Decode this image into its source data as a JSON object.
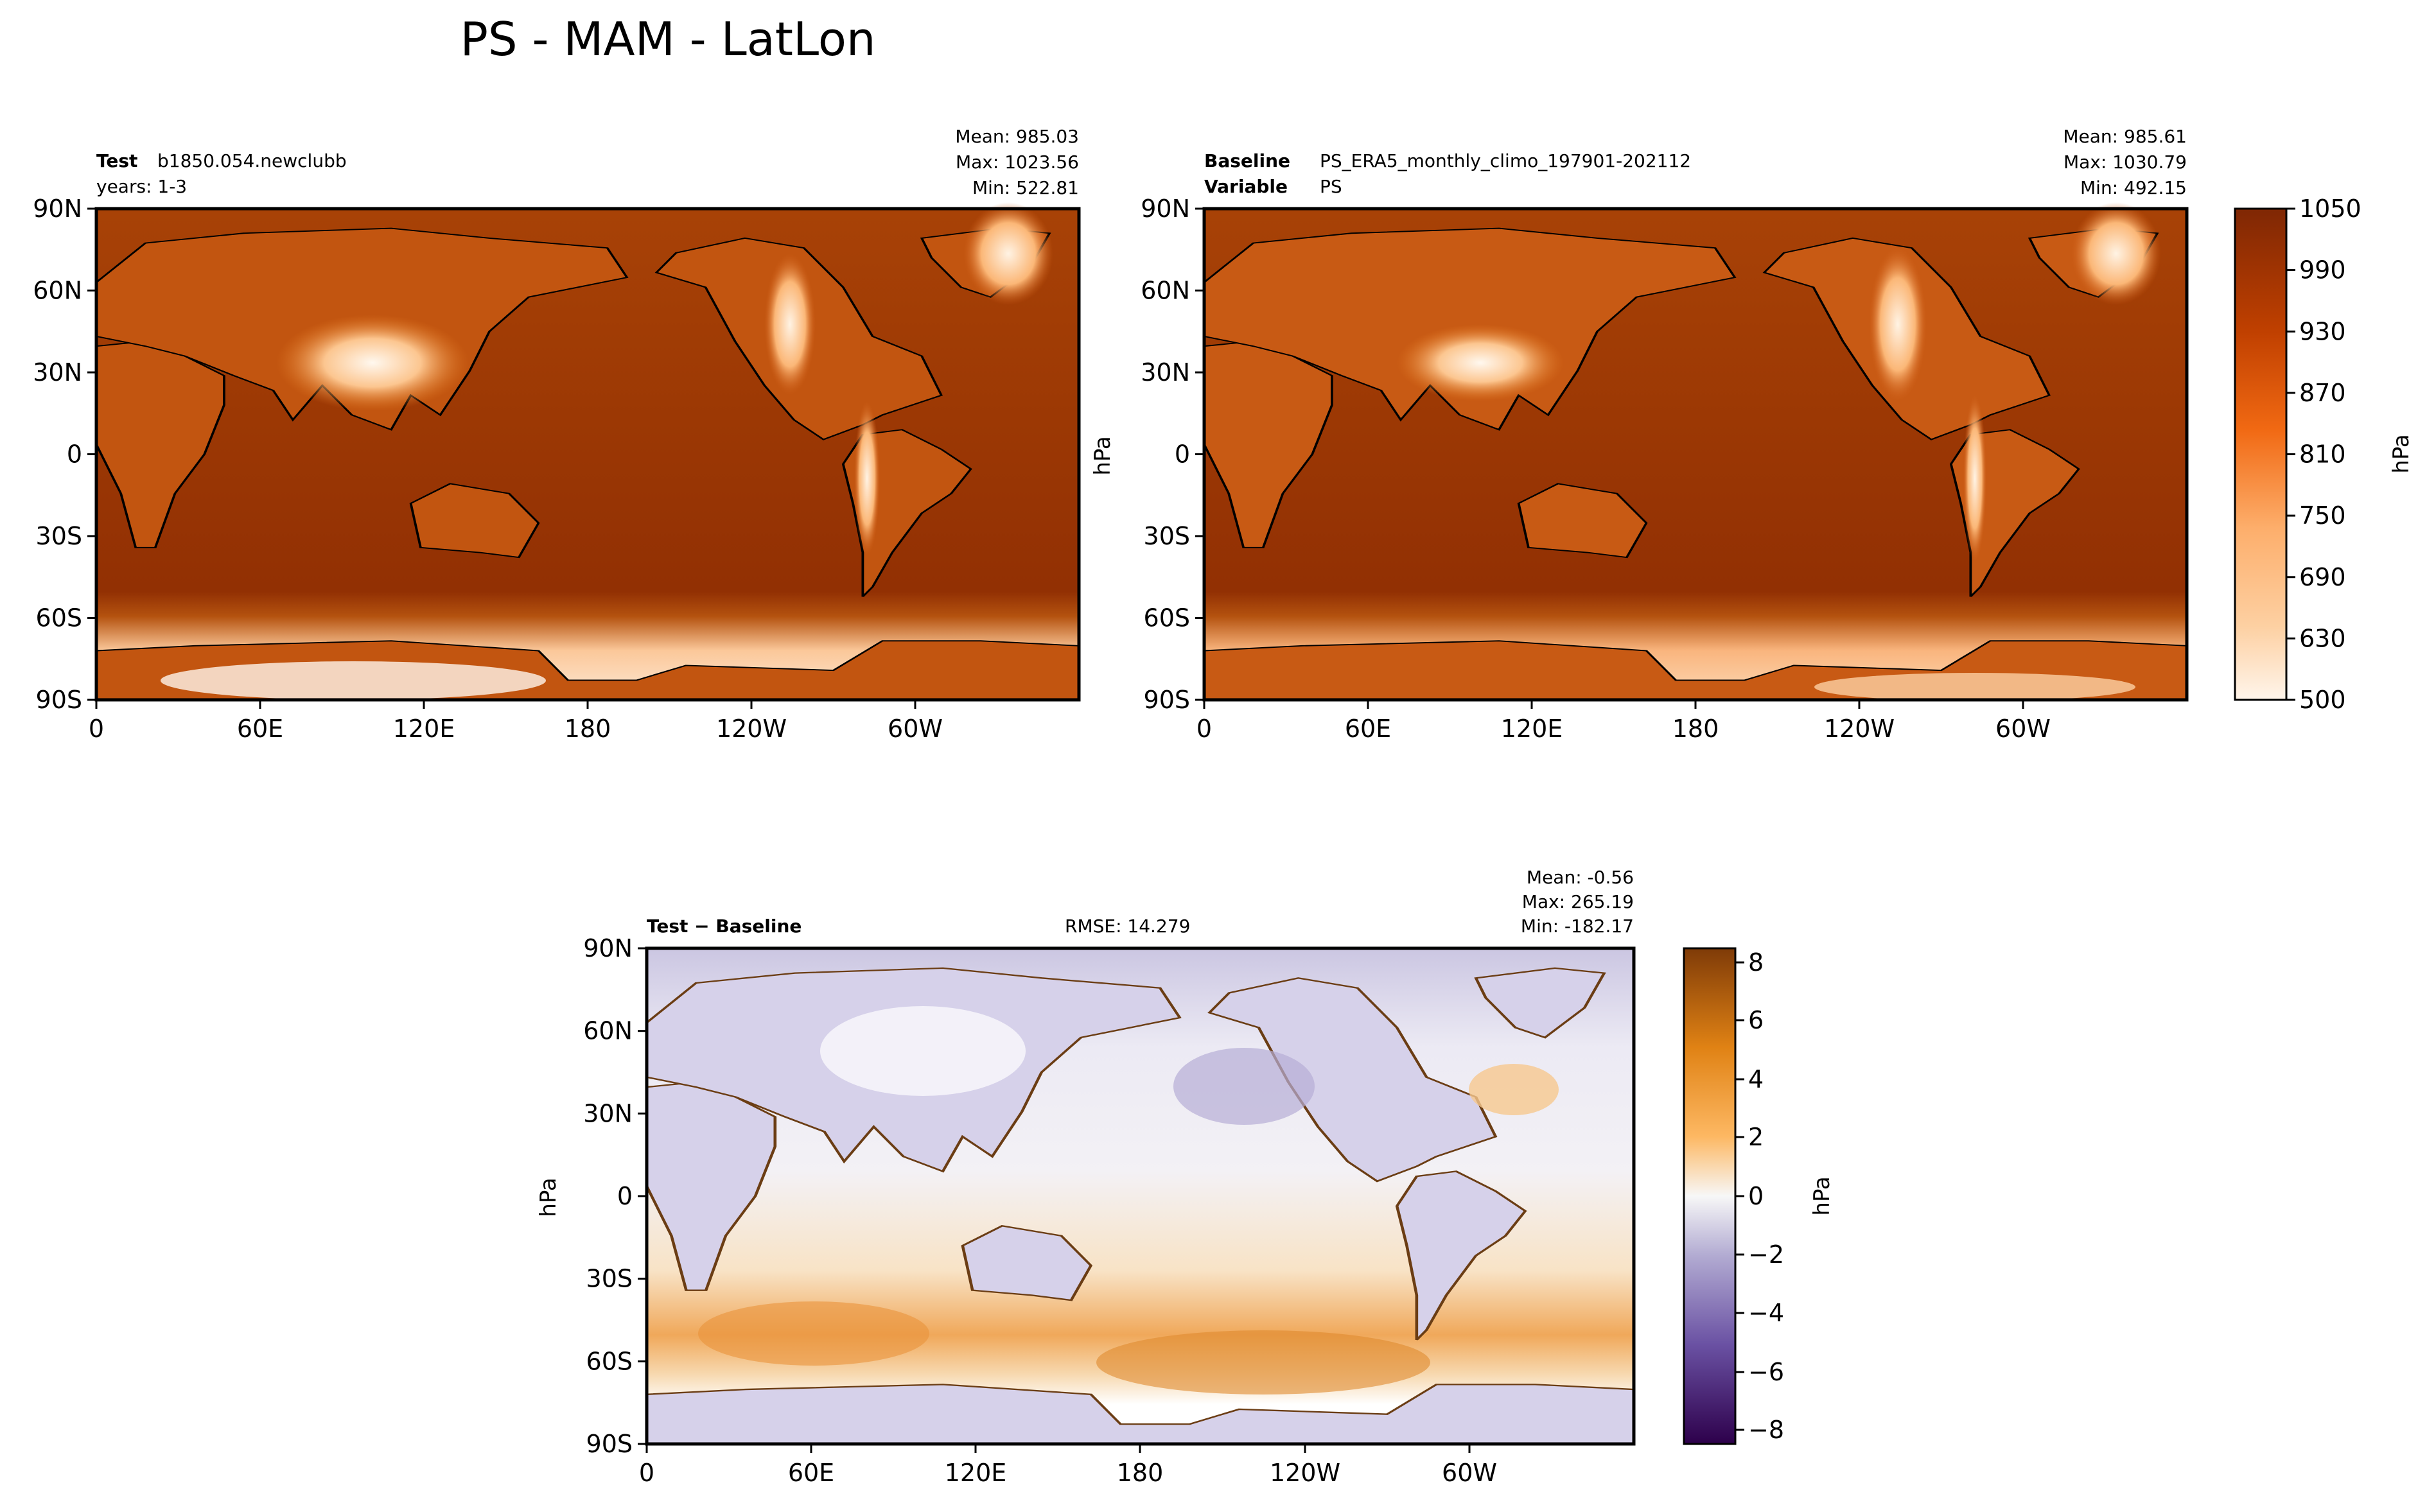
{
  "figure": {
    "title": "PS - MAM - LatLon"
  },
  "chart_data": [
    {
      "id": "test",
      "type": "heatmap",
      "subtype": "map-contour",
      "header_key": "Test",
      "header_value": "b1850.054.newclubb",
      "header_line2": "years: 1-3",
      "stats": {
        "mean": "Mean: 985.03",
        "max": "Max: 1023.56",
        "min": "Min: 522.81"
      },
      "x_ticks": [
        "0",
        "60E",
        "120E",
        "180",
        "120W",
        "60W"
      ],
      "y_ticks": [
        "90N",
        "60N",
        "30N",
        "0",
        "30S",
        "60S",
        "90S"
      ],
      "colormap": "Oranges",
      "units": "hPa"
    },
    {
      "id": "baseline",
      "type": "heatmap",
      "subtype": "map-contour",
      "header_key": "Baseline",
      "header_value": "PS_ERA5_monthly_climo_197901-202112",
      "header_key2": "Variable",
      "header_value2": "PS",
      "stats": {
        "mean": "Mean: 985.61",
        "max": "Max: 1030.79",
        "min": "Min: 492.15"
      },
      "x_ticks": [
        "0",
        "60E",
        "120E",
        "180",
        "120W",
        "60W"
      ],
      "y_ticks": [
        "90N",
        "60N",
        "30N",
        "0",
        "30S",
        "60S",
        "90S"
      ],
      "ylabel": "hPa",
      "colorbar": {
        "ticks": [
          "1050",
          "990",
          "930",
          "870",
          "810",
          "750",
          "690",
          "630",
          "500"
        ],
        "label": "hPa",
        "colors": [
          "#fff5eb",
          "#fee6ce",
          "#fdd0a2",
          "#fdae6b",
          "#fd8d3c",
          "#f16913",
          "#d94801",
          "#c04000",
          "#a63603",
          "#8f2e05",
          "#7f2704"
        ]
      }
    },
    {
      "id": "diff",
      "type": "heatmap",
      "subtype": "map-contour",
      "header_key": "Test − Baseline",
      "rmse": "RMSE: 14.279",
      "stats": {
        "mean": "Mean: -0.56",
        "max": "Max: 265.19",
        "min": "Min: -182.17"
      },
      "x_ticks": [
        "0",
        "60E",
        "120E",
        "180",
        "120W",
        "60W"
      ],
      "y_ticks": [
        "90N",
        "60N",
        "30N",
        "0",
        "30S",
        "60S",
        "90S"
      ],
      "ylabel": "hPa",
      "colorbar": {
        "ticks": [
          "8",
          "6",
          "4",
          "2",
          "0",
          "−2",
          "−4",
          "−6",
          "−8"
        ],
        "label": "hPa",
        "colors": [
          "#2d004b",
          "#542788",
          "#8073ac",
          "#b2abd2",
          "#d8daeb",
          "#f7f7f7",
          "#fee0b6",
          "#fdb863",
          "#e08214",
          "#b35806",
          "#7f3b08"
        ]
      }
    }
  ]
}
